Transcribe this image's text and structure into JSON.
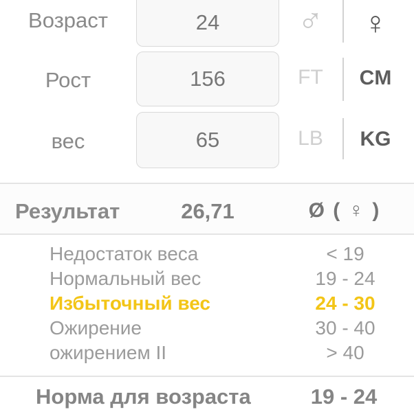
{
  "form": {
    "age": {
      "label": "Возраст",
      "value": "24"
    },
    "height": {
      "label": "Рост",
      "value": "156",
      "unit_off": "FT",
      "unit_on": "CM"
    },
    "weight": {
      "label": "вес",
      "value": "65",
      "unit_off": "LB",
      "unit_on": "KG"
    },
    "gender": {
      "male_symbol": "♂",
      "female_symbol": "♀"
    }
  },
  "result": {
    "label": "Результат",
    "value": "26,71",
    "unit": "Ø ( ♀ )"
  },
  "categories": [
    {
      "label": "Недостаток веса",
      "range": "< 19",
      "highlight": false
    },
    {
      "label": "Нормальный вес",
      "range": "19 - 24",
      "highlight": false
    },
    {
      "label": "Избыточный вес",
      "range": "24 - 30",
      "highlight": true
    },
    {
      "label": "Ожирение",
      "range": "30 - 40",
      "highlight": false
    },
    {
      "label": "ожирением II",
      "range": "> 40",
      "highlight": false
    }
  ],
  "norm": {
    "label": "Норма для возраста",
    "value": "19 - 24"
  },
  "colors": {
    "highlight": "#f3c517",
    "selected_unit": "#5d5d5d",
    "unselected_unit": "#cfcfcf",
    "text_gray": "#8a8a8a",
    "divider": "#e4e4e4"
  }
}
